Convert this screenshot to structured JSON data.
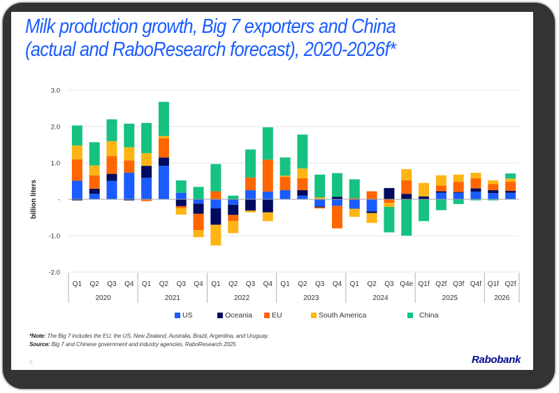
{
  "slide": {
    "title_line1": "Milk production growth, Big 7 exporters and China",
    "title_line2": "(actual and RaboResearch forecast), 2020-2026f*",
    "note_label": "*Note:",
    "note_text": "The Big 7 includes the EU, the US, New Zealand, Australia, Brazil, Argentina, and Uruguay.",
    "source_label": "Source:",
    "source_text": "Big 7 and Chinese government and industry agencies, RaboResearch 2025",
    "page_number": "6",
    "brand": "Rabobank"
  },
  "chart_data": {
    "type": "bar",
    "stacked": true,
    "title": "Milk production growth, Big 7 exporters and China (actual and RaboResearch forecast), 2020-2026f*",
    "xlabel": "",
    "ylabel": "billion liters",
    "ylim": [
      -2.0,
      3.0
    ],
    "yticks": [
      3.0,
      2.0,
      1.0,
      0,
      -1.0,
      -2.0
    ],
    "ytick_labels": [
      "3.0",
      "2.0",
      "1.0",
      "-",
      "-1.0",
      "-2.0"
    ],
    "grid": true,
    "legend_position": "bottom",
    "categories": [
      "Q1",
      "Q2",
      "Q3",
      "Q4",
      "Q1",
      "Q2",
      "Q3",
      "Q4",
      "Q1",
      "Q2",
      "Q3",
      "Q4",
      "Q1",
      "Q2",
      "Q3",
      "Q4",
      "Q1",
      "Q2",
      "Q3",
      "Q4e",
      "Q1f",
      "Q2f",
      "Q3f",
      "Q4f",
      "Q1f",
      "Q2f"
    ],
    "groups": [
      {
        "label": "2020",
        "count": 4
      },
      {
        "label": "2021",
        "count": 4
      },
      {
        "label": "2022",
        "count": 4
      },
      {
        "label": "2023",
        "count": 4
      },
      {
        "label": "2024",
        "count": 4
      },
      {
        "label": "2025",
        "count": 4
      },
      {
        "label": "2026",
        "count": 2
      }
    ],
    "series": [
      {
        "name": "US",
        "color": "#1a5cff",
        "values": [
          0.51,
          0.15,
          0.51,
          0.73,
          0.59,
          0.92,
          0.18,
          -0.12,
          -0.25,
          -0.15,
          0.25,
          0.21,
          0.25,
          0.1,
          -0.2,
          -0.18,
          -0.26,
          -0.33,
          0.0,
          0.0,
          0.0,
          0.18,
          0.18,
          0.21,
          0.17,
          0.18
        ]
      },
      {
        "name": "Oceania",
        "color": "#000a5e",
        "values": [
          -0.03,
          0.14,
          0.19,
          -0.03,
          0.33,
          0.23,
          -0.19,
          -0.28,
          -0.45,
          -0.28,
          -0.31,
          -0.36,
          0.0,
          0.15,
          -0.02,
          0.07,
          0.0,
          -0.05,
          0.31,
          0.15,
          0.08,
          0.04,
          0.02,
          0.09,
          0.08,
          0.05
        ]
      },
      {
        "name": "EU",
        "color": "#ff6600",
        "values": [
          0.59,
          0.37,
          0.49,
          0.34,
          -0.05,
          0.53,
          -0.05,
          -0.45,
          0.22,
          -0.17,
          0.35,
          0.88,
          0.37,
          0.33,
          -0.03,
          -0.62,
          0.03,
          0.22,
          -0.1,
          0.37,
          0.0,
          0.16,
          0.28,
          0.28,
          0.17,
          0.25
        ]
      },
      {
        "name": "South America",
        "color": "#fdb515",
        "values": [
          0.38,
          0.27,
          0.41,
          0.36,
          0.35,
          0.06,
          -0.18,
          -0.19,
          -0.57,
          -0.33,
          -0.05,
          -0.24,
          0.03,
          0.27,
          0.05,
          0.0,
          -0.22,
          -0.27,
          -0.11,
          0.31,
          0.37,
          0.28,
          0.2,
          0.15,
          0.1,
          0.09
        ]
      },
      {
        "name": "China",
        "color": "#15c281",
        "values": [
          0.55,
          0.64,
          0.6,
          0.65,
          0.83,
          0.94,
          0.34,
          0.34,
          0.75,
          0.1,
          0.77,
          0.89,
          0.5,
          0.93,
          0.63,
          0.65,
          0.52,
          0.0,
          -0.7,
          -1.0,
          -0.6,
          -0.3,
          -0.13,
          -0.03,
          -0.03,
          0.14
        ]
      }
    ]
  }
}
